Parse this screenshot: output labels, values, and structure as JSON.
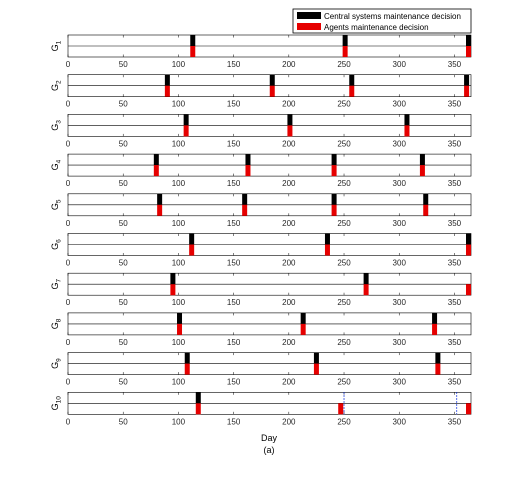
{
  "chart_data": {
    "type": "bar",
    "xlabel": "Day",
    "caption": "(a)",
    "xlim": [
      0,
      365
    ],
    "xticks": [
      0,
      50,
      100,
      150,
      200,
      250,
      300,
      350
    ],
    "grid": false,
    "legend": {
      "placement": "top-right",
      "entries": [
        {
          "name": "Central systems maintenance decision",
          "color": "#000000"
        },
        {
          "name": "Agents maintenance decision",
          "color": "#e60000"
        }
      ]
    },
    "panels": [
      {
        "label": "G",
        "sub": "1",
        "central": [
          113,
          251,
          365
        ],
        "agents": [
          113,
          251,
          365
        ],
        "dashed": [],
        "xtick_labels": false
      },
      {
        "label": "G",
        "sub": "2",
        "central": [
          90,
          185,
          257,
          361
        ],
        "agents": [
          90,
          185,
          257,
          361
        ],
        "dashed": [],
        "xtick_labels": false
      },
      {
        "label": "G",
        "sub": "3",
        "central": [
          107,
          201,
          307
        ],
        "agents": [
          107,
          201,
          307
        ],
        "dashed": [],
        "xtick_labels": false
      },
      {
        "label": "G",
        "sub": "4",
        "central": [
          80,
          163,
          241,
          321
        ],
        "agents": [
          80,
          163,
          241,
          321
        ],
        "dashed": [],
        "xtick_labels": false
      },
      {
        "label": "G",
        "sub": "5",
        "central": [
          83,
          160,
          241,
          324
        ],
        "agents": [
          83,
          160,
          241,
          324
        ],
        "dashed": [],
        "xtick_labels": false
      },
      {
        "label": "G",
        "sub": "6",
        "central": [
          112,
          235,
          365
        ],
        "agents": [
          112,
          235,
          365
        ],
        "dashed": [],
        "xtick_labels": false
      },
      {
        "label": "G",
        "sub": "7",
        "central": [
          95,
          270
        ],
        "agents": [
          95,
          270,
          365
        ],
        "dashed": [],
        "xtick_labels": false
      },
      {
        "label": "G",
        "sub": "8",
        "central": [
          101,
          213,
          332
        ],
        "agents": [
          101,
          213,
          332
        ],
        "dashed": [],
        "xtick_labels": false
      },
      {
        "label": "G",
        "sub": "9",
        "central": [
          108,
          225,
          335
        ],
        "agents": [
          108,
          225,
          335
        ],
        "dashed": [],
        "xtick_labels": false
      },
      {
        "label": "G",
        "sub": "10",
        "central": [
          118
        ],
        "agents": [
          118,
          247,
          365
        ],
        "dashed": [
          250,
          352
        ],
        "xtick_labels": true
      }
    ]
  }
}
